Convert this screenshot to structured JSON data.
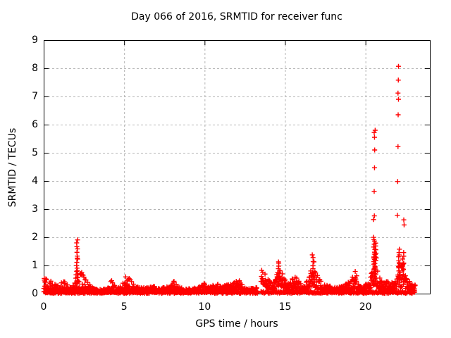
{
  "header": {
    "title": "Day 066 of 2016, SRMTID for receiver func"
  },
  "chart_data": {
    "type": "scatter",
    "title": "Day 066 of 2016, SRMTID for receiver func",
    "xlabel": "GPS time / hours",
    "ylabel": "SRMTID / TECUs",
    "xlim": [
      0,
      24
    ],
    "ylim": [
      0,
      9
    ],
    "xticks": [
      "0",
      "5",
      "10",
      "15",
      "20"
    ],
    "xtick_values": [
      0,
      5,
      10,
      15,
      20
    ],
    "yticks": [
      "0",
      "1",
      "2",
      "3",
      "4",
      "5",
      "6",
      "7",
      "8",
      "9"
    ],
    "ytick_values": [
      0,
      1,
      2,
      3,
      4,
      5,
      6,
      7,
      8,
      9
    ],
    "grid": true,
    "grid_style": "dashed",
    "legend_position": "none",
    "marker": {
      "shape": "plus",
      "color": "#ff0000",
      "size": 7
    },
    "colors": {
      "points": "#ff0000",
      "grid": "#b4b4b4",
      "axis": "#000000",
      "background": "#ffffff",
      "text": "#000000"
    },
    "x_data_range": [
      0.0,
      23.1
    ],
    "band_envelope_segments": [
      [
        [
          0.0,
          0.18,
          0.78
        ],
        [
          0.2,
          0.12,
          0.62
        ],
        [
          0.45,
          0.08,
          0.45
        ],
        [
          0.7,
          0.06,
          0.35
        ],
        [
          0.95,
          0.05,
          0.28
        ],
        [
          1.15,
          0.08,
          0.48
        ],
        [
          1.35,
          0.08,
          0.42
        ],
        [
          1.6,
          0.04,
          0.22
        ],
        [
          1.85,
          0.05,
          0.3
        ],
        [
          2.0,
          0.1,
          0.75
        ],
        [
          2.1,
          0.12,
          0.95
        ],
        [
          2.25,
          0.1,
          0.85
        ],
        [
          2.45,
          0.08,
          0.75
        ],
        [
          2.65,
          0.08,
          0.6
        ],
        [
          2.9,
          0.04,
          0.28
        ],
        [
          3.3,
          0.03,
          0.15
        ],
        [
          3.8,
          0.03,
          0.16
        ],
        [
          4.05,
          0.04,
          0.28
        ],
        [
          4.2,
          0.06,
          0.5
        ],
        [
          4.45,
          0.04,
          0.28
        ],
        [
          4.7,
          0.04,
          0.2
        ],
        [
          4.95,
          0.08,
          0.45
        ],
        [
          5.15,
          0.12,
          0.75
        ],
        [
          5.4,
          0.08,
          0.5
        ],
        [
          5.65,
          0.05,
          0.28
        ],
        [
          6.0,
          0.05,
          0.22
        ],
        [
          6.5,
          0.06,
          0.26
        ],
        [
          7.0,
          0.06,
          0.28
        ],
        [
          7.4,
          0.05,
          0.22
        ],
        [
          7.8,
          0.05,
          0.26
        ],
        [
          8.1,
          0.08,
          0.45
        ],
        [
          8.4,
          0.05,
          0.28
        ],
        [
          8.7,
          0.04,
          0.18
        ],
        [
          9.2,
          0.04,
          0.18
        ],
        [
          9.7,
          0.06,
          0.26
        ],
        [
          10.0,
          0.08,
          0.42
        ],
        [
          10.25,
          0.06,
          0.28
        ],
        [
          10.65,
          0.07,
          0.3
        ],
        [
          11.0,
          0.09,
          0.38
        ],
        [
          11.35,
          0.08,
          0.32
        ],
        [
          11.7,
          0.1,
          0.38
        ],
        [
          12.0,
          0.13,
          0.45
        ],
        [
          12.25,
          0.16,
          0.52
        ],
        [
          12.4,
          0.06,
          0.22
        ],
        [
          12.9,
          0.05,
          0.2
        ],
        [
          13.3,
          0.05,
          0.22
        ]
      ],
      [
        [
          13.5,
          0.38,
          0.92
        ],
        [
          13.75,
          0.28,
          0.7
        ],
        [
          14.0,
          0.18,
          0.5
        ],
        [
          14.15,
          0.14,
          0.36
        ],
        [
          14.4,
          0.18,
          0.6
        ],
        [
          14.6,
          0.28,
          0.95
        ],
        [
          14.78,
          0.22,
          0.75
        ],
        [
          15.0,
          0.16,
          0.55
        ],
        [
          15.3,
          0.1,
          0.36
        ],
        [
          15.55,
          0.18,
          0.7
        ],
        [
          15.78,
          0.14,
          0.52
        ],
        [
          16.05,
          0.08,
          0.3
        ],
        [
          16.35,
          0.1,
          0.42
        ],
        [
          16.6,
          0.22,
          0.85
        ],
        [
          16.75,
          0.28,
          1.3
        ],
        [
          16.95,
          0.18,
          0.72
        ],
        [
          17.3,
          0.1,
          0.42
        ],
        [
          17.7,
          0.07,
          0.28
        ],
        [
          18.2,
          0.05,
          0.22
        ],
        [
          18.7,
          0.08,
          0.3
        ],
        [
          19.1,
          0.14,
          0.55
        ],
        [
          19.3,
          0.22,
          0.9
        ],
        [
          19.55,
          0.14,
          0.52
        ],
        [
          19.85,
          0.07,
          0.28
        ],
        [
          20.0,
          0.09,
          0.32
        ],
        [
          20.3,
          0.18,
          0.55
        ],
        [
          20.5,
          0.28,
          1.4
        ],
        [
          20.65,
          0.28,
          1.9
        ],
        [
          20.8,
          0.18,
          0.65
        ],
        [
          21.05,
          0.11,
          0.42
        ],
        [
          21.3,
          0.14,
          0.5
        ],
        [
          21.55,
          0.11,
          0.42
        ],
        [
          21.8,
          0.14,
          0.52
        ],
        [
          22.0,
          0.18,
          0.8
        ],
        [
          22.15,
          0.22,
          1.3
        ],
        [
          22.35,
          0.26,
          1.45
        ],
        [
          22.55,
          0.14,
          0.55
        ],
        [
          22.8,
          0.11,
          0.42
        ],
        [
          23.0,
          0.11,
          0.38
        ],
        [
          23.1,
          0.1,
          0.32
        ]
      ]
    ],
    "spike_columns": [
      [
        2.08,
        0.35,
        1.9,
        15
      ],
      [
        14.62,
        0.35,
        1.15,
        10
      ],
      [
        16.73,
        0.4,
        1.38,
        9
      ],
      [
        20.55,
        0.35,
        2.02,
        20
      ],
      [
        20.63,
        0.3,
        1.7,
        12
      ],
      [
        22.1,
        0.3,
        1.58,
        14
      ],
      [
        22.33,
        0.3,
        1.48,
        10
      ]
    ],
    "outlier_points": [
      [
        2.08,
        1.26
      ],
      [
        20.5,
        2.63
      ],
      [
        20.55,
        2.76
      ],
      [
        20.54,
        3.63
      ],
      [
        20.56,
        4.47
      ],
      [
        20.57,
        5.1
      ],
      [
        20.56,
        5.55
      ],
      [
        20.54,
        5.72
      ],
      [
        20.6,
        5.8
      ],
      [
        21.98,
        2.78
      ],
      [
        22.0,
        3.98
      ],
      [
        22.02,
        5.22
      ],
      [
        22.03,
        6.35
      ],
      [
        22.05,
        6.9
      ],
      [
        22.02,
        7.12
      ],
      [
        22.04,
        7.58
      ],
      [
        22.05,
        8.07
      ],
      [
        22.38,
        2.62
      ],
      [
        22.4,
        2.44
      ]
    ],
    "points_per_hour": 60,
    "floor_band": {
      "points_per_hour": 25,
      "ylo": 0.01,
      "yhi": 0.08
    }
  }
}
